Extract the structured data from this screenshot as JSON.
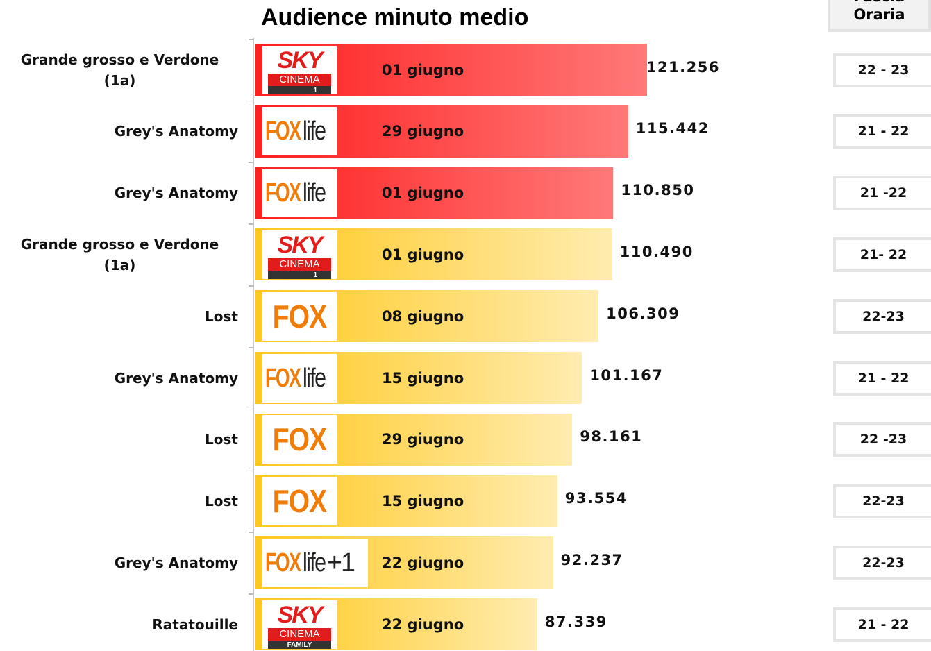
{
  "chart_data": {
    "type": "bar",
    "title": "Audience minuto medio",
    "slot_header": "Fascia Oraria",
    "categories": [
      "Grande grosso e Verdone (1a)",
      "Grey's Anatomy",
      "Grey's Anatomy",
      "Grande grosso e Verdone (1a)",
      "Lost",
      "Grey's Anatomy",
      "Lost",
      "Lost",
      "Grey's Anatomy",
      "Ratatouille"
    ],
    "values": [
      121256,
      115442,
      110850,
      110490,
      106309,
      101167,
      98161,
      93554,
      92237,
      87339
    ],
    "value_labels": [
      "121.256",
      "115.442",
      "110.850",
      "110.490",
      "106.309",
      "101.167",
      "98.161",
      "93.554",
      "92.237",
      "87.339"
    ],
    "dates": [
      "01 giugno",
      "29 giugno",
      "01 giugno",
      "01 giugno",
      "08 giugno",
      "15 giugno",
      "29 giugno",
      "15 giugno",
      "22 giugno",
      "22 giugno"
    ],
    "slots": [
      "22 - 23",
      "21 - 22",
      "21 -22",
      "21- 22",
      "22-23",
      "21 - 22",
      "22 -23",
      "22-23",
      "22-23",
      "21 - 22"
    ],
    "channels": [
      [
        "SKY",
        "CINEMA",
        "1"
      ],
      [
        "FOX",
        "life"
      ],
      [
        "FOX",
        "life"
      ],
      [
        "SKY",
        "CINEMA",
        "1"
      ],
      [
        "FOX"
      ],
      [
        "FOX",
        "life"
      ],
      [
        "FOX"
      ],
      [
        "FOX"
      ],
      [
        "FOX",
        "life",
        "+1"
      ],
      [
        "SKY",
        "CINEMA",
        "FAMILY"
      ]
    ],
    "colors": [
      "#ff1f1f",
      "#ff1f1f",
      "#ff1f1f",
      "#ffc81e",
      "#ffc81e",
      "#ffc81e",
      "#ffc81e",
      "#ffc81e",
      "#ffc81e",
      "#ffc81e"
    ]
  }
}
